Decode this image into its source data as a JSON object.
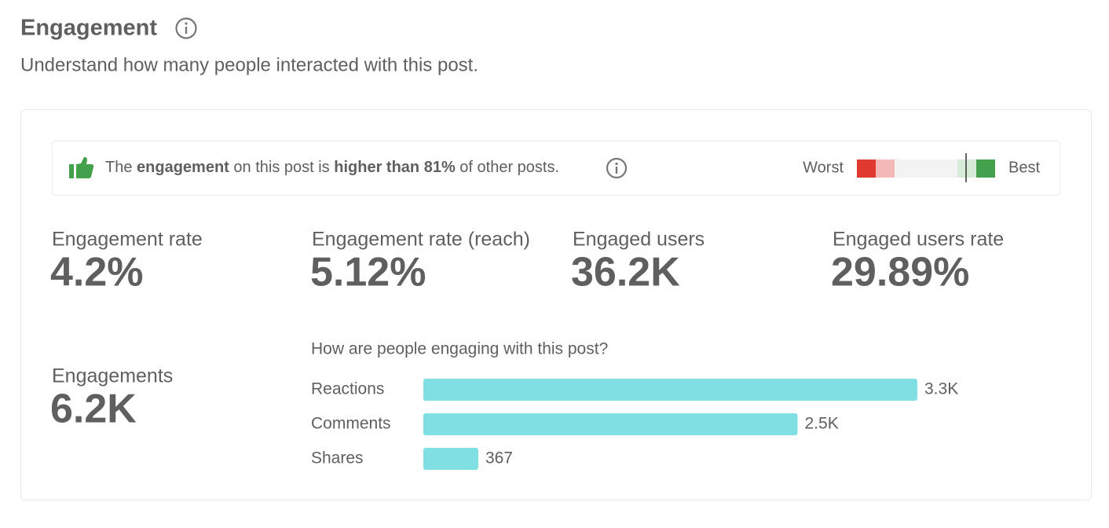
{
  "header": {
    "title": "Engagement",
    "subtitle": "Understand how many people interacted with this post."
  },
  "banner": {
    "parts": [
      "The ",
      "engagement",
      " on this post is ",
      "higher than 81%",
      " of other posts."
    ],
    "worst": "Worst",
    "best": "Best"
  },
  "metrics": [
    {
      "label": "Engagement rate",
      "value": "4.2%"
    },
    {
      "label": "Engagement rate (reach)",
      "value": "5.12%"
    },
    {
      "label": "Engaged users",
      "value": "36.2K"
    },
    {
      "label": "Engaged users rate",
      "value": "29.89%"
    }
  ],
  "engagements": {
    "label": "Engagements",
    "value": "6.2K"
  },
  "chart_data": {
    "type": "bar",
    "title": "How are people engaging with this post?",
    "categories": [
      "Reactions",
      "Comments",
      "Shares"
    ],
    "values": [
      3300,
      2500,
      367
    ],
    "value_labels": [
      "3.3K",
      "2.5K",
      "367"
    ],
    "color": "#80dfe2"
  }
}
